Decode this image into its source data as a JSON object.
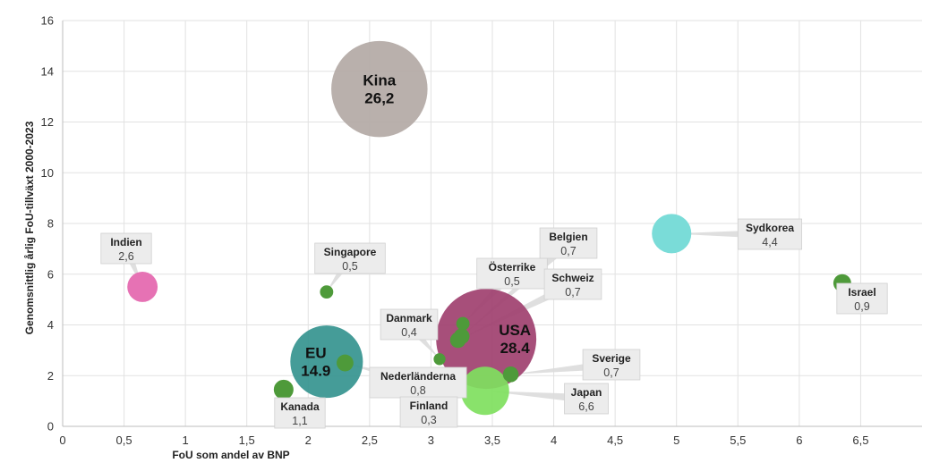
{
  "chart_data": {
    "type": "scatter",
    "xlabel": "FoU som andel av BNP",
    "ylabel": "Genomsnittlig årlig FoU-tillväxt 2000-2023",
    "xlim": [
      0,
      7
    ],
    "ylim": [
      0,
      16
    ],
    "x_ticks": [
      "0",
      "0,5",
      "1",
      "1,5",
      "2",
      "2,5",
      "3",
      "3,5",
      "4",
      "4,5",
      "5",
      "5,5",
      "6",
      "6,5"
    ],
    "y_ticks": [
      "0",
      "2",
      "4",
      "6",
      "8",
      "10",
      "12",
      "14",
      "16"
    ],
    "grid": true,
    "colors": {
      "china": "#b3a9a5",
      "usa": "#a0406f",
      "eu": "#35948f",
      "japan": "#7fe05e",
      "korea": "#7adcd8",
      "india": "#e672b4",
      "small": "#4e9a3a"
    },
    "points": [
      {
        "name": "Kina",
        "value": "26,2",
        "x": 2.58,
        "y": 13.3,
        "size": 26.2,
        "color": "#b3a9a5",
        "label": "inside"
      },
      {
        "name": "USA",
        "value": "28.4",
        "x": 3.45,
        "y": 3.45,
        "size": 28.4,
        "color": "#a0406f",
        "label": "inside"
      },
      {
        "name": "EU",
        "value": "14.9",
        "x": 2.15,
        "y": 2.55,
        "size": 14.9,
        "color": "#35948f",
        "label": "inside"
      },
      {
        "name": "Japan",
        "value": "6,6",
        "x": 3.44,
        "y": 1.4,
        "size": 6.6,
        "color": "#7fe05e",
        "label": "box"
      },
      {
        "name": "Sydkorea",
        "value": "4,4",
        "x": 4.96,
        "y": 7.6,
        "size": 4.4,
        "color": "#7adcd8",
        "label": "box"
      },
      {
        "name": "Indien",
        "value": "2,6",
        "x": 0.65,
        "y": 5.5,
        "size": 2.6,
        "color": "#e672b4",
        "label": "box"
      },
      {
        "name": "Israel",
        "value": "0,9",
        "x": 6.35,
        "y": 5.65,
        "size": 0.9,
        "color": "#4e9a3a",
        "label": "box"
      },
      {
        "name": "Singapore",
        "value": "0,5",
        "x": 2.15,
        "y": 5.3,
        "size": 0.5,
        "color": "#4e9a3a",
        "label": "box"
      },
      {
        "name": "Kanada",
        "value": "1,1",
        "x": 1.8,
        "y": 1.45,
        "size": 1.1,
        "color": "#4e9a3a",
        "label": "box"
      },
      {
        "name": "Nederländerna",
        "value": "0,8",
        "x": 2.3,
        "y": 2.5,
        "size": 0.8,
        "color": "#4e9a3a",
        "label": "box"
      },
      {
        "name": "Danmark",
        "value": "0,4",
        "x": 3.07,
        "y": 2.65,
        "size": 0.4,
        "color": "#4e9a3a",
        "label": "box"
      },
      {
        "name": "Finland",
        "value": "0,3",
        "x": 3.1,
        "y": 0.75,
        "size": 0.3,
        "color": "#4e9a3a",
        "label": "box"
      },
      {
        "name": "Österrike",
        "value": "0,5",
        "x": 3.26,
        "y": 4.05,
        "size": 0.5,
        "color": "#4e9a3a",
        "label": "box"
      },
      {
        "name": "Belgien",
        "value": "0,7",
        "x": 3.25,
        "y": 3.55,
        "size": 0.7,
        "color": "#4e9a3a",
        "label": "box"
      },
      {
        "name": "Schweiz",
        "value": "0,7",
        "x": 3.22,
        "y": 3.4,
        "size": 0.7,
        "color": "#4e9a3a",
        "label": "box"
      },
      {
        "name": "Sverige",
        "value": "0,7",
        "x": 3.65,
        "y": 2.05,
        "size": 0.7,
        "color": "#4e9a3a",
        "label": "box"
      }
    ]
  }
}
